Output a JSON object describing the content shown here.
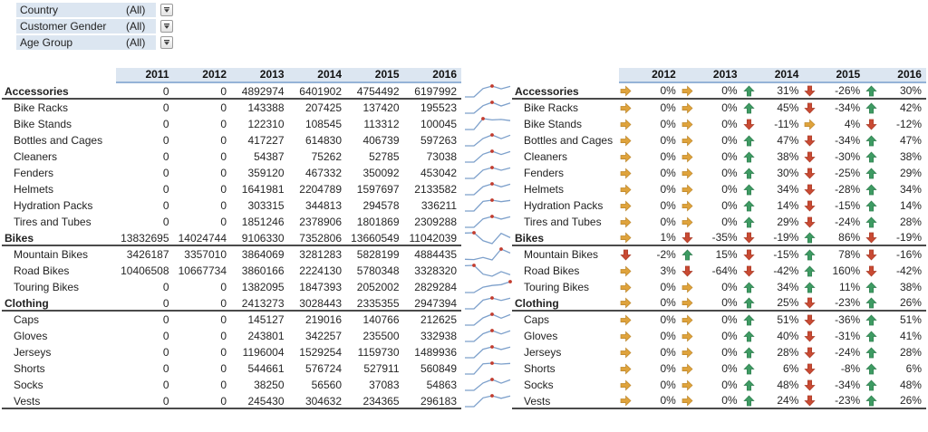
{
  "filters": {
    "items": [
      {
        "label": "Country",
        "value": "(All)"
      },
      {
        "label": "Customer Gender",
        "value": "(All)"
      },
      {
        "label": "Age Group",
        "value": "(All)"
      }
    ]
  },
  "left_table": {
    "years": [
      "2011",
      "2012",
      "2013",
      "2014",
      "2015",
      "2016"
    ],
    "rows": [
      {
        "name": "Accessories",
        "level": "category",
        "values": [
          0,
          0,
          4892974,
          6401902,
          4754492,
          6197992
        ]
      },
      {
        "name": "Bike Racks",
        "level": "sub",
        "values": [
          0,
          0,
          143388,
          207425,
          137420,
          195523
        ]
      },
      {
        "name": "Bike Stands",
        "level": "sub",
        "values": [
          0,
          0,
          122310,
          108545,
          113312,
          100045
        ]
      },
      {
        "name": "Bottles and Cages",
        "level": "sub",
        "values": [
          0,
          0,
          417227,
          614830,
          406739,
          597263
        ]
      },
      {
        "name": "Cleaners",
        "level": "sub",
        "values": [
          0,
          0,
          54387,
          75262,
          52785,
          73038
        ]
      },
      {
        "name": "Fenders",
        "level": "sub",
        "values": [
          0,
          0,
          359120,
          467332,
          350092,
          453042
        ]
      },
      {
        "name": "Helmets",
        "level": "sub",
        "values": [
          0,
          0,
          1641981,
          2204789,
          1597697,
          2133582
        ]
      },
      {
        "name": "Hydration Packs",
        "level": "sub",
        "values": [
          0,
          0,
          303315,
          344813,
          294578,
          336211
        ]
      },
      {
        "name": "Tires and Tubes",
        "level": "sub",
        "values": [
          0,
          0,
          1851246,
          2378906,
          1801869,
          2309288
        ]
      },
      {
        "name": "Bikes",
        "level": "category",
        "values": [
          13832695,
          14024744,
          9106330,
          7352806,
          13660549,
          11042039
        ]
      },
      {
        "name": "Mountain Bikes",
        "level": "sub",
        "values": [
          3426187,
          3357010,
          3864069,
          3281283,
          5828199,
          4884435
        ]
      },
      {
        "name": "Road Bikes",
        "level": "sub",
        "values": [
          10406508,
          10667734,
          3860166,
          2224130,
          5780348,
          3328320
        ]
      },
      {
        "name": "Touring Bikes",
        "level": "sub",
        "values": [
          0,
          0,
          1382095,
          1847393,
          2052002,
          2829284
        ]
      },
      {
        "name": "Clothing",
        "level": "category",
        "values": [
          0,
          0,
          2413273,
          3028443,
          2335355,
          2947394
        ]
      },
      {
        "name": "Caps",
        "level": "sub",
        "values": [
          0,
          0,
          145127,
          219016,
          140766,
          212625
        ]
      },
      {
        "name": "Gloves",
        "level": "sub",
        "values": [
          0,
          0,
          243801,
          342257,
          235500,
          332938
        ]
      },
      {
        "name": "Jerseys",
        "level": "sub",
        "values": [
          0,
          0,
          1196004,
          1529254,
          1159730,
          1489936
        ]
      },
      {
        "name": "Shorts",
        "level": "sub",
        "values": [
          0,
          0,
          544661,
          576724,
          527911,
          560849
        ]
      },
      {
        "name": "Socks",
        "level": "sub",
        "values": [
          0,
          0,
          38250,
          56560,
          37083,
          54863
        ]
      },
      {
        "name": "Vests",
        "level": "sub",
        "values": [
          0,
          0,
          245430,
          304632,
          234365,
          296183
        ]
      }
    ]
  },
  "right_table": {
    "years": [
      "2012",
      "2013",
      "2014",
      "2015",
      "2016"
    ],
    "rows": [
      {
        "name": "Accessories",
        "level": "category",
        "cells": [
          {
            "arrow": "flat",
            "pct": "0%"
          },
          {
            "arrow": "flat",
            "pct": "0%"
          },
          {
            "arrow": "up",
            "pct": "31%"
          },
          {
            "arrow": "down",
            "pct": "-26%"
          },
          {
            "arrow": "up",
            "pct": "30%"
          }
        ]
      },
      {
        "name": "Bike Racks",
        "level": "sub",
        "cells": [
          {
            "arrow": "flat",
            "pct": "0%"
          },
          {
            "arrow": "flat",
            "pct": "0%"
          },
          {
            "arrow": "up",
            "pct": "45%"
          },
          {
            "arrow": "down",
            "pct": "-34%"
          },
          {
            "arrow": "up",
            "pct": "42%"
          }
        ]
      },
      {
        "name": "Bike Stands",
        "level": "sub",
        "cells": [
          {
            "arrow": "flat",
            "pct": "0%"
          },
          {
            "arrow": "flat",
            "pct": "0%"
          },
          {
            "arrow": "down",
            "pct": "-11%"
          },
          {
            "arrow": "flat",
            "pct": "4%"
          },
          {
            "arrow": "down",
            "pct": "-12%"
          }
        ]
      },
      {
        "name": "Bottles and Cages",
        "level": "sub",
        "cells": [
          {
            "arrow": "flat",
            "pct": "0%"
          },
          {
            "arrow": "flat",
            "pct": "0%"
          },
          {
            "arrow": "up",
            "pct": "47%"
          },
          {
            "arrow": "down",
            "pct": "-34%"
          },
          {
            "arrow": "up",
            "pct": "47%"
          }
        ]
      },
      {
        "name": "Cleaners",
        "level": "sub",
        "cells": [
          {
            "arrow": "flat",
            "pct": "0%"
          },
          {
            "arrow": "flat",
            "pct": "0%"
          },
          {
            "arrow": "up",
            "pct": "38%"
          },
          {
            "arrow": "down",
            "pct": "-30%"
          },
          {
            "arrow": "up",
            "pct": "38%"
          }
        ]
      },
      {
        "name": "Fenders",
        "level": "sub",
        "cells": [
          {
            "arrow": "flat",
            "pct": "0%"
          },
          {
            "arrow": "flat",
            "pct": "0%"
          },
          {
            "arrow": "up",
            "pct": "30%"
          },
          {
            "arrow": "down",
            "pct": "-25%"
          },
          {
            "arrow": "up",
            "pct": "29%"
          }
        ]
      },
      {
        "name": "Helmets",
        "level": "sub",
        "cells": [
          {
            "arrow": "flat",
            "pct": "0%"
          },
          {
            "arrow": "flat",
            "pct": "0%"
          },
          {
            "arrow": "up",
            "pct": "34%"
          },
          {
            "arrow": "down",
            "pct": "-28%"
          },
          {
            "arrow": "up",
            "pct": "34%"
          }
        ]
      },
      {
        "name": "Hydration Packs",
        "level": "sub",
        "cells": [
          {
            "arrow": "flat",
            "pct": "0%"
          },
          {
            "arrow": "flat",
            "pct": "0%"
          },
          {
            "arrow": "up",
            "pct": "14%"
          },
          {
            "arrow": "down",
            "pct": "-15%"
          },
          {
            "arrow": "up",
            "pct": "14%"
          }
        ]
      },
      {
        "name": "Tires and Tubes",
        "level": "sub",
        "cells": [
          {
            "arrow": "flat",
            "pct": "0%"
          },
          {
            "arrow": "flat",
            "pct": "0%"
          },
          {
            "arrow": "up",
            "pct": "29%"
          },
          {
            "arrow": "down",
            "pct": "-24%"
          },
          {
            "arrow": "up",
            "pct": "28%"
          }
        ]
      },
      {
        "name": "Bikes",
        "level": "category",
        "cells": [
          {
            "arrow": "flat",
            "pct": "1%"
          },
          {
            "arrow": "down",
            "pct": "-35%"
          },
          {
            "arrow": "down",
            "pct": "-19%"
          },
          {
            "arrow": "up",
            "pct": "86%"
          },
          {
            "arrow": "down",
            "pct": "-19%"
          }
        ]
      },
      {
        "name": "Mountain Bikes",
        "level": "sub",
        "cells": [
          {
            "arrow": "down",
            "pct": "-2%"
          },
          {
            "arrow": "up",
            "pct": "15%"
          },
          {
            "arrow": "down",
            "pct": "-15%"
          },
          {
            "arrow": "up",
            "pct": "78%"
          },
          {
            "arrow": "down",
            "pct": "-16%"
          }
        ]
      },
      {
        "name": "Road Bikes",
        "level": "sub",
        "cells": [
          {
            "arrow": "flat",
            "pct": "3%"
          },
          {
            "arrow": "down",
            "pct": "-64%"
          },
          {
            "arrow": "down",
            "pct": "-42%"
          },
          {
            "arrow": "up",
            "pct": "160%"
          },
          {
            "arrow": "down",
            "pct": "-42%"
          }
        ]
      },
      {
        "name": "Touring Bikes",
        "level": "sub",
        "cells": [
          {
            "arrow": "flat",
            "pct": "0%"
          },
          {
            "arrow": "flat",
            "pct": "0%"
          },
          {
            "arrow": "up",
            "pct": "34%"
          },
          {
            "arrow": "up",
            "pct": "11%"
          },
          {
            "arrow": "up",
            "pct": "38%"
          }
        ]
      },
      {
        "name": "Clothing",
        "level": "category",
        "cells": [
          {
            "arrow": "flat",
            "pct": "0%"
          },
          {
            "arrow": "flat",
            "pct": "0%"
          },
          {
            "arrow": "up",
            "pct": "25%"
          },
          {
            "arrow": "down",
            "pct": "-23%"
          },
          {
            "arrow": "up",
            "pct": "26%"
          }
        ]
      },
      {
        "name": "Caps",
        "level": "sub",
        "cells": [
          {
            "arrow": "flat",
            "pct": "0%"
          },
          {
            "arrow": "flat",
            "pct": "0%"
          },
          {
            "arrow": "up",
            "pct": "51%"
          },
          {
            "arrow": "down",
            "pct": "-36%"
          },
          {
            "arrow": "up",
            "pct": "51%"
          }
        ]
      },
      {
        "name": "Gloves",
        "level": "sub",
        "cells": [
          {
            "arrow": "flat",
            "pct": "0%"
          },
          {
            "arrow": "flat",
            "pct": "0%"
          },
          {
            "arrow": "up",
            "pct": "40%"
          },
          {
            "arrow": "down",
            "pct": "-31%"
          },
          {
            "arrow": "up",
            "pct": "41%"
          }
        ]
      },
      {
        "name": "Jerseys",
        "level": "sub",
        "cells": [
          {
            "arrow": "flat",
            "pct": "0%"
          },
          {
            "arrow": "flat",
            "pct": "0%"
          },
          {
            "arrow": "up",
            "pct": "28%"
          },
          {
            "arrow": "down",
            "pct": "-24%"
          },
          {
            "arrow": "up",
            "pct": "28%"
          }
        ]
      },
      {
        "name": "Shorts",
        "level": "sub",
        "cells": [
          {
            "arrow": "flat",
            "pct": "0%"
          },
          {
            "arrow": "flat",
            "pct": "0%"
          },
          {
            "arrow": "up",
            "pct": "6%"
          },
          {
            "arrow": "down",
            "pct": "-8%"
          },
          {
            "arrow": "up",
            "pct": "6%"
          }
        ]
      },
      {
        "name": "Socks",
        "level": "sub",
        "cells": [
          {
            "arrow": "flat",
            "pct": "0%"
          },
          {
            "arrow": "flat",
            "pct": "0%"
          },
          {
            "arrow": "up",
            "pct": "48%"
          },
          {
            "arrow": "down",
            "pct": "-34%"
          },
          {
            "arrow": "up",
            "pct": "48%"
          }
        ]
      },
      {
        "name": "Vests",
        "level": "sub",
        "cells": [
          {
            "arrow": "flat",
            "pct": "0%"
          },
          {
            "arrow": "flat",
            "pct": "0%"
          },
          {
            "arrow": "up",
            "pct": "24%"
          },
          {
            "arrow": "down",
            "pct": "-23%"
          },
          {
            "arrow": "up",
            "pct": "26%"
          }
        ]
      }
    ]
  },
  "colors": {
    "header_bg": "#dce6f1",
    "header_border": "#95b3d7",
    "section_border": "#4a4a4a",
    "arrow_up": "#3e9b63",
    "arrow_up_stroke": "#2f7c4d",
    "arrow_down": "#c94a33",
    "arrow_down_stroke": "#a83c28",
    "arrow_flat": "#dfa33c",
    "arrow_flat_stroke": "#bb862c",
    "sparkline_line": "#7da0cb",
    "sparkline_marker": "#c33c2e"
  }
}
